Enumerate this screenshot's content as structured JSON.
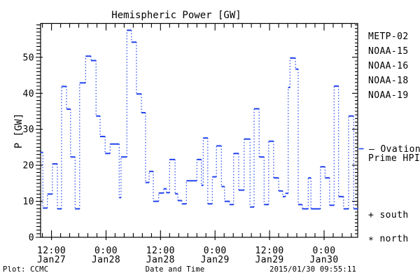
{
  "title": "Hemispheric Power [GW]",
  "annotations": {
    "plot_credit": "Plot: CCMC",
    "timestamp": "2015/01/30 09:55:11"
  },
  "legend": {
    "satellites": [
      {
        "label": "METP-02",
        "color": "#000000"
      },
      {
        "label": "NOAA-15",
        "color": "#2343ee"
      },
      {
        "label": "NOAA-16",
        "color": "#3cc3f6"
      },
      {
        "label": "NOAA-18",
        "color": "#5ce487"
      },
      {
        "label": "NOAA-19",
        "color": "#ffa41f"
      }
    ],
    "model": {
      "marker": "–",
      "name_line1": "Ovation",
      "name_line2": "Prime HPI",
      "color": "#2343ee"
    },
    "hemispheres": [
      {
        "symbol": "+",
        "label": "south",
        "color": "#000000"
      },
      {
        "symbol": "*",
        "label": "north",
        "color": "#000000"
      }
    ]
  },
  "chart_data": {
    "type": "line",
    "line_style": "steps; solid horizontal dash markers joined by dotted vertical connectors",
    "title": "Hemispheric Power [GW]",
    "xlabel": "Date and Time",
    "ylabel": "P [GW]",
    "ylim": [
      0,
      59.4
    ],
    "y_major_ticks": [
      0,
      10,
      20,
      30,
      40,
      50
    ],
    "y_minor_step": 1,
    "xlim_hours": [
      0,
      69.8
    ],
    "x_minor_step_hours": 2,
    "x_major_ticks": [
      {
        "hour": 2.4,
        "time": "12:00",
        "date": "Jan27"
      },
      {
        "hour": 14.4,
        "time": "0:00",
        "date": "Jan28"
      },
      {
        "hour": 26.4,
        "time": "12:00",
        "date": "Jan28"
      },
      {
        "hour": 38.4,
        "time": "0:00",
        "date": "Jan29"
      },
      {
        "hour": 50.4,
        "time": "12:00",
        "date": "Jan29"
      },
      {
        "hour": 62.4,
        "time": "0:00",
        "date": "Jan30"
      }
    ],
    "grid": false,
    "legend_position": "right",
    "series": [
      {
        "name": "Ovation Prime HPI",
        "unit": "GW",
        "color": "#2343ee",
        "steps_hours_gw": [
          [
            0,
            23.6
          ],
          [
            0.5,
            8.1
          ],
          [
            1.5,
            12.0
          ],
          [
            2.6,
            20.4
          ],
          [
            3.7,
            7.9
          ],
          [
            4.6,
            41.9
          ],
          [
            5.7,
            35.6
          ],
          [
            6.6,
            22.3
          ],
          [
            7.6,
            7.9
          ],
          [
            8.6,
            42.9
          ],
          [
            9.9,
            50.3
          ],
          [
            11.1,
            49.1
          ],
          [
            12.2,
            33.7
          ],
          [
            13.1,
            28.0
          ],
          [
            14.2,
            23.3
          ],
          [
            15.3,
            25.9
          ],
          [
            17.3,
            11.0
          ],
          [
            17.7,
            22.3
          ],
          [
            19.0,
            57.5
          ],
          [
            20.0,
            54.2
          ],
          [
            21.1,
            39.8
          ],
          [
            22.2,
            34.6
          ],
          [
            23.1,
            15.2
          ],
          [
            23.9,
            18.3
          ],
          [
            24.8,
            10.0
          ],
          [
            26.0,
            12.3
          ],
          [
            27.1,
            13.5
          ],
          [
            27.7,
            12.4
          ],
          [
            28.4,
            21.6
          ],
          [
            29.6,
            12.1
          ],
          [
            30.2,
            10.2
          ],
          [
            31.1,
            9.3
          ],
          [
            32.1,
            15.7
          ],
          [
            34.4,
            21.6
          ],
          [
            35.4,
            14.4
          ],
          [
            35.8,
            27.6
          ],
          [
            36.8,
            9.3
          ],
          [
            37.8,
            16.8
          ],
          [
            38.7,
            25.4
          ],
          [
            39.8,
            14.1
          ],
          [
            40.5,
            10.0
          ],
          [
            41.6,
            9.1
          ],
          [
            42.5,
            23.3
          ],
          [
            43.6,
            13.1
          ],
          [
            44.8,
            27.3
          ],
          [
            46.1,
            8.4
          ],
          [
            47.0,
            35.7
          ],
          [
            48.1,
            22.3
          ],
          [
            49.2,
            9.1
          ],
          [
            50.2,
            26.7
          ],
          [
            51.3,
            16.5
          ],
          [
            52.4,
            12.9
          ],
          [
            53.3,
            11.3
          ],
          [
            53.9,
            12.2
          ],
          [
            54.5,
            41.6
          ],
          [
            54.9,
            49.8
          ],
          [
            56.1,
            46.7
          ],
          [
            56.7,
            9.1
          ],
          [
            57.6,
            7.9
          ],
          [
            58.9,
            16.5
          ],
          [
            59.5,
            7.9
          ],
          [
            61.6,
            19.6
          ],
          [
            62.6,
            16.5
          ],
          [
            63.6,
            8.9
          ],
          [
            64.6,
            42.0
          ],
          [
            65.6,
            11.3
          ],
          [
            66.7,
            7.9
          ],
          [
            67.8,
            33.7
          ],
          [
            68.9,
            7.9
          ]
        ]
      }
    ]
  }
}
